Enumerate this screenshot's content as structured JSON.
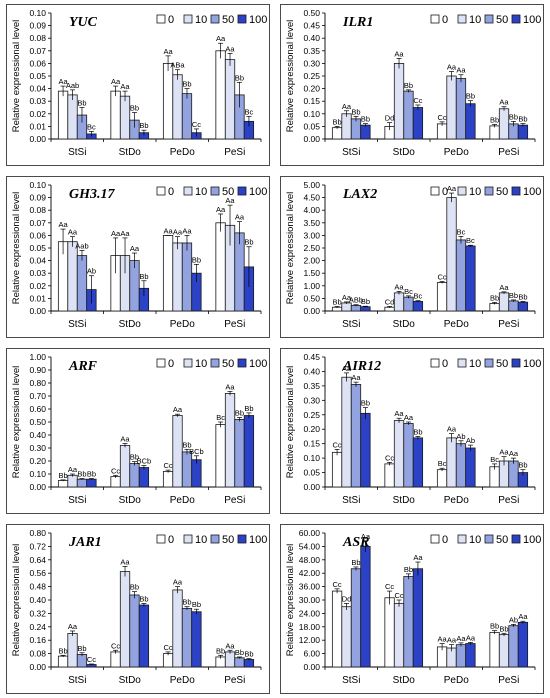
{
  "legend": {
    "labels": [
      "0",
      "10",
      "50",
      "100"
    ]
  },
  "colors": {
    "series": [
      "#ffffff",
      "#dde3f5",
      "#93a3e0",
      "#2b41c6"
    ],
    "stroke": "#1a1a1a"
  },
  "chart_data": [
    {
      "type": "bar",
      "title": "YUC",
      "ylabel": "Relative expressional level",
      "categories": [
        "StSi",
        "StDo",
        "PeDo",
        "PeSi"
      ],
      "ylim": [
        0,
        0.1
      ],
      "yticks": [
        "0.00",
        "0.01",
        "0.02",
        "0.03",
        "0.04",
        "0.05",
        "0.06",
        "0.07",
        "0.08",
        "0.09",
        "0.10"
      ],
      "series": [
        {
          "name": "0",
          "values": [
            0.038,
            0.038,
            0.06,
            0.07
          ],
          "errors": [
            0.004,
            0.004,
            0.006,
            0.006
          ],
          "labels": [
            "Aa",
            "Aa",
            "Aa",
            "Aa"
          ]
        },
        {
          "name": "10",
          "values": [
            0.035,
            0.034,
            0.051,
            0.063
          ],
          "errors": [
            0.004,
            0.004,
            0.004,
            0.005
          ],
          "labels": [
            "Aab",
            "Aa",
            "ABa",
            "Aa"
          ]
        },
        {
          "name": "50",
          "values": [
            0.019,
            0.015,
            0.036,
            0.035
          ],
          "errors": [
            0.006,
            0.006,
            0.004,
            0.01
          ],
          "labels": [
            "Bb",
            "Bb",
            "Bb",
            "Bb"
          ]
        },
        {
          "name": "100",
          "values": [
            0.004,
            0.005,
            0.005,
            0.014
          ],
          "errors": [
            0.002,
            0.002,
            0.003,
            0.004
          ],
          "labels": [
            "Bc",
            "Bb",
            "Cc",
            "Bc"
          ]
        }
      ]
    },
    {
      "type": "bar",
      "title": "ILR1",
      "ylabel": "Relative expressional level",
      "categories": [
        "StSi",
        "StDo",
        "PeDo",
        "PeSi"
      ],
      "ylim": [
        0,
        0.5
      ],
      "yticks": [
        "0.00",
        "0.05",
        "0.10",
        "0.15",
        "0.20",
        "0.25",
        "0.30",
        "0.35",
        "0.40",
        "0.45",
        "0.50"
      ],
      "series": [
        {
          "name": "0",
          "values": [
            0.045,
            0.05,
            0.06,
            0.052
          ],
          "errors": [
            0.005,
            0.015,
            0.008,
            0.006
          ],
          "labels": [
            "Bb",
            "Dd",
            "Cc",
            "Bb"
          ]
        },
        {
          "name": "10",
          "values": [
            0.1,
            0.3,
            0.25,
            0.12
          ],
          "errors": [
            0.012,
            0.02,
            0.018,
            0.008
          ],
          "labels": [
            "Aa",
            "Aa",
            "Aa",
            "Aa"
          ]
        },
        {
          "name": "50",
          "values": [
            0.08,
            0.19,
            0.24,
            0.06
          ],
          "errors": [
            0.01,
            0.005,
            0.015,
            0.01
          ],
          "labels": [
            "Bb",
            "Bb",
            "Aa",
            "Bb"
          ]
        },
        {
          "name": "100",
          "values": [
            0.055,
            0.125,
            0.14,
            0.055
          ],
          "errors": [
            0.006,
            0.01,
            0.012,
            0.006
          ],
          "labels": [
            "Bb",
            "Cc",
            "Bb",
            "Bb"
          ]
        }
      ]
    },
    {
      "type": "bar",
      "title": "GH3.17",
      "ylabel": "Relative expressional level",
      "categories": [
        "StSi",
        "StDo",
        "PeDo",
        "PeSi"
      ],
      "ylim": [
        0,
        0.1
      ],
      "yticks": [
        "0.00",
        "0.01",
        "0.02",
        "0.03",
        "0.04",
        "0.05",
        "0.06",
        "0.07",
        "0.08",
        "0.09",
        "0.10"
      ],
      "series": [
        {
          "name": "0",
          "values": [
            0.055,
            0.044,
            0.06,
            0.07
          ],
          "errors": [
            0.01,
            0.014,
            0.0,
            0.007
          ],
          "labels": [
            "Aa",
            "Aa",
            "Aa",
            "Aa"
          ]
        },
        {
          "name": "10",
          "values": [
            0.055,
            0.044,
            0.054,
            0.068
          ],
          "errors": [
            0.004,
            0.014,
            0.005,
            0.016
          ],
          "labels": [
            "Aa",
            "Aa",
            "Aa",
            "Aa"
          ]
        },
        {
          "name": "50",
          "values": [
            0.044,
            0.04,
            0.054,
            0.062
          ],
          "errors": [
            0.004,
            0.006,
            0.006,
            0.009
          ],
          "labels": [
            "Aab",
            "Aa",
            "Aa",
            "Aa"
          ]
        },
        {
          "name": "100",
          "values": [
            0.017,
            0.018,
            0.03,
            0.035
          ],
          "errors": [
            0.011,
            0.006,
            0.007,
            0.016
          ],
          "labels": [
            "Ab",
            "Bb",
            "Bb",
            "Bb"
          ]
        }
      ]
    },
    {
      "type": "bar",
      "title": "LAX2",
      "ylabel": "Relative expressional level",
      "categories": [
        "StSi",
        "StDo",
        "PeDo",
        "PeSi"
      ],
      "ylim": [
        0,
        5
      ],
      "yticks": [
        "0.00",
        "0.50",
        "1.00",
        "1.50",
        "2.00",
        "2.50",
        "3.00",
        "3.50",
        "4.00",
        "4.50",
        "5.00"
      ],
      "series": [
        {
          "name": "0",
          "values": [
            0.15,
            0.15,
            1.13,
            0.3
          ],
          "errors": [
            0.03,
            0.03,
            0.04,
            0.04
          ],
          "labels": [
            "Bb",
            "Cd",
            "Cc",
            "Bb"
          ]
        },
        {
          "name": "10",
          "values": [
            0.32,
            0.72,
            4.5,
            0.72
          ],
          "errors": [
            0.04,
            0.06,
            0.18,
            0.04
          ],
          "labels": [
            "Aa",
            "Aa",
            "Aa",
            "Aa"
          ]
        },
        {
          "name": "50",
          "values": [
            0.22,
            0.55,
            2.82,
            0.4
          ],
          "errors": [
            0.03,
            0.05,
            0.14,
            0.04
          ],
          "labels": [
            "ABb",
            "Bc",
            "Bc",
            "Bb"
          ]
        },
        {
          "name": "100",
          "values": [
            0.17,
            0.38,
            2.58,
            0.35
          ],
          "errors": [
            0.02,
            0.03,
            0.03,
            0.03
          ],
          "labels": [
            "Bb",
            "Bc",
            "Bc",
            "Bb"
          ]
        }
      ]
    },
    {
      "type": "bar",
      "title": "ARF",
      "ylabel": "Relative expressional level",
      "categories": [
        "StSi",
        "StDo",
        "PeDo",
        "PeSi"
      ],
      "ylim": [
        0,
        1
      ],
      "yticks": [
        "0.00",
        "0.10",
        "0.20",
        "0.30",
        "0.40",
        "0.50",
        "0.60",
        "0.70",
        "0.80",
        "0.90",
        "1.00"
      ],
      "series": [
        {
          "name": "0",
          "values": [
            0.05,
            0.08,
            0.12,
            0.48
          ],
          "errors": [
            0.005,
            0.01,
            0.01,
            0.02
          ],
          "labels": [
            "Bb",
            "Cc",
            "Cc",
            "Bc"
          ]
        },
        {
          "name": "10",
          "values": [
            0.09,
            0.32,
            0.55,
            0.72
          ],
          "errors": [
            0.01,
            0.015,
            0.01,
            0.015
          ],
          "labels": [
            "Aa",
            "Aa",
            "Aa",
            "Aa"
          ]
        },
        {
          "name": "50",
          "values": [
            0.06,
            0.18,
            0.27,
            0.52
          ],
          "errors": [
            0.005,
            0.015,
            0.02,
            0.015
          ],
          "labels": [
            "Bb",
            "Bb",
            "Bb",
            "Bb"
          ]
        },
        {
          "name": "100",
          "values": [
            0.06,
            0.15,
            0.21,
            0.55
          ],
          "errors": [
            0.005,
            0.015,
            0.03,
            0.02
          ],
          "labels": [
            "Bb",
            "BCb",
            "BCb",
            "Bb"
          ]
        }
      ]
    },
    {
      "type": "bar",
      "title": "AIR12",
      "ylabel": "Relative expressional level",
      "categories": [
        "StSi",
        "StDo",
        "PeDo",
        "PeSi"
      ],
      "ylim": [
        0,
        0.45
      ],
      "yticks": [
        "0.00",
        "0.05",
        "0.10",
        "0.15",
        "0.20",
        "0.25",
        "0.30",
        "0.35",
        "0.40",
        "0.45"
      ],
      "series": [
        {
          "name": "0",
          "values": [
            0.12,
            0.08,
            0.06,
            0.07
          ],
          "errors": [
            0.01,
            0.005,
            0.005,
            0.01
          ],
          "labels": [
            "Cc",
            "Cc",
            "Bc",
            "Bc"
          ]
        },
        {
          "name": "10",
          "values": [
            0.38,
            0.23,
            0.17,
            0.09
          ],
          "errors": [
            0.015,
            0.008,
            0.015,
            0.015
          ],
          "labels": [
            "Aa",
            "Aa",
            "Aa",
            "Aa"
          ]
        },
        {
          "name": "50",
          "values": [
            0.355,
            0.22,
            0.15,
            0.09
          ],
          "errors": [
            0.008,
            0.005,
            0.01,
            0.01
          ],
          "labels": [
            "Aa",
            "Aa",
            "Ab",
            "Aa"
          ]
        },
        {
          "name": "100",
          "values": [
            0.255,
            0.17,
            0.135,
            0.05
          ],
          "errors": [
            0.02,
            0.005,
            0.01,
            0.01
          ],
          "labels": [
            "Bb",
            "Bb",
            "Ab",
            "Bb"
          ]
        }
      ]
    },
    {
      "type": "bar",
      "title": "JAR1",
      "ylabel": "Relative expressional level",
      "categories": [
        "StSi",
        "StDo",
        "PeDo",
        "PeSi"
      ],
      "ylim": [
        0,
        0.8
      ],
      "yticks": [
        "0.00",
        "0.08",
        "0.16",
        "0.24",
        "0.32",
        "0.40",
        "0.48",
        "0.56",
        "0.64",
        "0.72",
        "0.80"
      ],
      "series": [
        {
          "name": "0",
          "values": [
            0.065,
            0.09,
            0.08,
            0.06
          ],
          "errors": [
            0.005,
            0.01,
            0.01,
            0.01
          ],
          "labels": [
            "Bb",
            "Cc",
            "Cc",
            "Bb"
          ]
        },
        {
          "name": "10",
          "values": [
            0.2,
            0.57,
            0.46,
            0.09
          ],
          "errors": [
            0.015,
            0.03,
            0.02,
            0.01
          ],
          "labels": [
            "Aa",
            "Aa",
            "Aa",
            "Aa"
          ]
        },
        {
          "name": "50",
          "values": [
            0.075,
            0.43,
            0.35,
            0.055
          ],
          "errors": [
            0.01,
            0.02,
            0.01,
            0.005
          ],
          "labels": [
            "Bb",
            "Bb",
            "Bb",
            "Bb"
          ]
        },
        {
          "name": "100",
          "values": [
            0.015,
            0.37,
            0.33,
            0.045
          ],
          "errors": [
            0.003,
            0.01,
            0.015,
            0.005
          ],
          "labels": [
            "Cc",
            "Bb",
            "Bb",
            "Bb"
          ]
        }
      ]
    },
    {
      "type": "bar",
      "title": "ASR",
      "ylabel": "Relative expressional level",
      "categories": [
        "StSi",
        "StDo",
        "PeDo",
        "PeSi"
      ],
      "ylim": [
        0,
        60
      ],
      "yticks": [
        "0.00",
        "6.00",
        "12.00",
        "18.00",
        "24.00",
        "30.00",
        "36.00",
        "42.00",
        "48.00",
        "54.00",
        "60.00"
      ],
      "series": [
        {
          "name": "0",
          "values": [
            34.0,
            31.0,
            9.0,
            15.5
          ],
          "errors": [
            1.0,
            3.0,
            1.5,
            0.8
          ],
          "labels": [
            "Cc",
            "Cc",
            "Aa",
            "Bb"
          ]
        },
        {
          "name": "10",
          "values": [
            27.0,
            28.5,
            8.5,
            14.5
          ],
          "errors": [
            1.5,
            1.5,
            1.5,
            0.6
          ],
          "labels": [
            "Dd",
            "Cc",
            "Aa",
            "Bb"
          ]
        },
        {
          "name": "50",
          "values": [
            44.0,
            40.5,
            10.0,
            18.5
          ],
          "errors": [
            0.8,
            1.2,
            0.8,
            0.6
          ],
          "labels": [
            "Bb",
            "Bb",
            "Aa",
            "Ab"
          ]
        },
        {
          "name": "100",
          "values": [
            54.0,
            44.0,
            10.5,
            20.0
          ],
          "errors": [
            2.5,
            3.0,
            0.5,
            0.5
          ],
          "labels": [
            "Aa",
            "Aa",
            "Aa",
            "Aa"
          ]
        }
      ]
    }
  ]
}
